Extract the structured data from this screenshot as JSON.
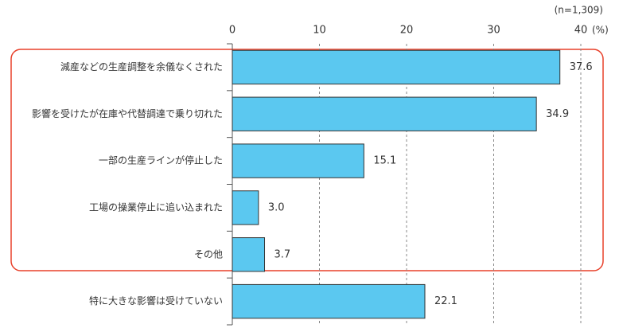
{
  "chart_data": {
    "type": "bar",
    "orientation": "horizontal",
    "subtitle": "(n=1,309)",
    "x_axis_label": "(%)",
    "categories": [
      "減産などの生産調整を余儀なくされた",
      "影響を受けたが在庫や代替調達で乗り切れた",
      "一部の生産ラインが停止した",
      "工場の操業停止に追い込まれた",
      "その他",
      "特に大きな影響は受けていない"
    ],
    "values": [
      37.6,
      34.9,
      15.1,
      3.0,
      3.7,
      22.1
    ],
    "value_labels": [
      "37.6",
      "34.9",
      "15.1",
      "3.0",
      "3.7",
      "22.1"
    ],
    "color": "#5bc8f0",
    "xlim": [
      0,
      40
    ],
    "xticks": [
      0,
      10,
      20,
      30,
      40
    ],
    "grid": true
  }
}
